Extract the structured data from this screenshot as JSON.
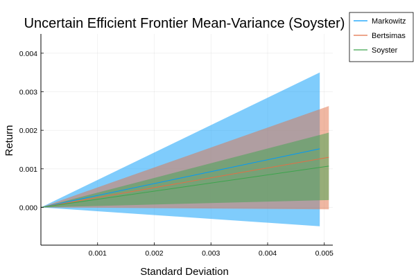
{
  "chart_data": {
    "type": "area",
    "title": "Uncertain Efficient Frontier Mean-Variance (Soyster)",
    "xlabel": "Standard Deviation",
    "ylabel": "Return",
    "xlim": [
      0.0,
      0.00515
    ],
    "ylim": [
      -0.00098,
      0.0045
    ],
    "xticks": [
      0.001,
      0.002,
      0.003,
      0.004,
      0.005
    ],
    "xtick_labels": [
      "0.001",
      "0.002",
      "0.003",
      "0.004",
      "0.005"
    ],
    "yticks": [
      0.0,
      0.001,
      0.002,
      0.003,
      0.004
    ],
    "ytick_labels": [
      "0.000",
      "0.001",
      "0.002",
      "0.003",
      "0.004"
    ],
    "grid": true,
    "legend_position": "top-right",
    "series": [
      {
        "name": "Markowitz",
        "color": "#009AFA",
        "fill_opacity": 0.5,
        "x": [
          0.0,
          0.00492
        ],
        "mean": [
          0.0,
          0.00152
        ],
        "lower": [
          0.0,
          -0.00049
        ],
        "upper": [
          0.0,
          0.0035
        ]
      },
      {
        "name": "Bertsimas",
        "color": "#E26F46",
        "fill_opacity": 0.5,
        "x": [
          0.0,
          0.00508
        ],
        "mean": [
          0.0,
          0.0013
        ],
        "lower": [
          0.0,
          -5e-05
        ],
        "upper": [
          0.0,
          0.00263
        ]
      },
      {
        "name": "Soyster",
        "color": "#3DA44D",
        "fill_opacity": 0.5,
        "x": [
          0.0,
          0.00508
        ],
        "mean": [
          0.0,
          0.00107
        ],
        "lower": [
          0.0,
          0.00019
        ],
        "upper": [
          0.0,
          0.00194
        ]
      }
    ]
  }
}
